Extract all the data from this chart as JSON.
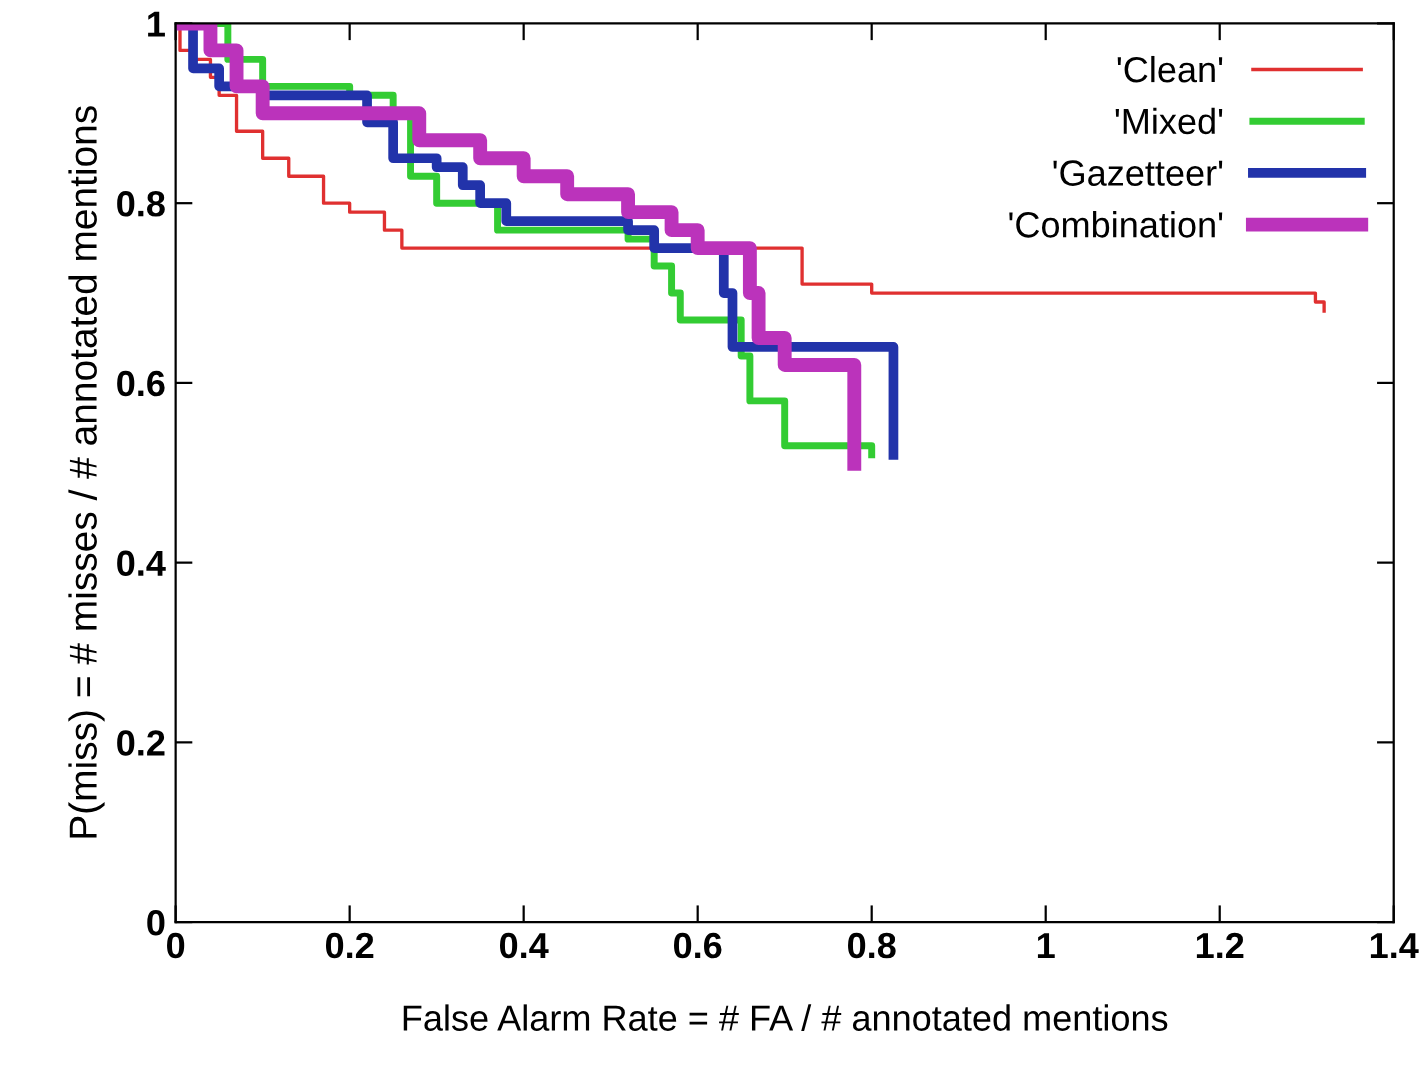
{
  "chart_data": {
    "type": "step",
    "xlabel": "False Alarm Rate = # FA / # annotated mentions",
    "ylabel": "P(miss) = # misses / # annotated mentions",
    "xlim": [
      0,
      1.4
    ],
    "ylim": [
      0,
      1
    ],
    "xticks": [
      0,
      0.2,
      0.4,
      0.6,
      0.8,
      1,
      1.2,
      1.4
    ],
    "yticks": [
      0,
      0.2,
      0.4,
      0.6,
      0.8,
      1
    ],
    "grid": false,
    "legend": "top right",
    "series": [
      {
        "name": "'Clean'",
        "color": "#e03030",
        "x": [
          0,
          0.005,
          0.02,
          0.04,
          0.05,
          0.07,
          0.1,
          0.13,
          0.17,
          0.2,
          0.24,
          0.26,
          0.72,
          0.8,
          1.3,
          1.31,
          1.32
        ],
        "values": [
          1,
          0.97,
          0.96,
          0.94,
          0.92,
          0.88,
          0.85,
          0.83,
          0.8,
          0.79,
          0.77,
          0.75,
          0.71,
          0.7,
          0.7,
          0.69,
          0.68
        ]
      },
      {
        "name": "'Mixed'",
        "color": "#33cc33",
        "x": [
          0,
          0.06,
          0.1,
          0.2,
          0.25,
          0.27,
          0.3,
          0.37,
          0.52,
          0.55,
          0.57,
          0.58,
          0.65,
          0.66,
          0.7,
          0.8
        ],
        "values": [
          1,
          0.96,
          0.93,
          0.92,
          0.9,
          0.83,
          0.8,
          0.77,
          0.76,
          0.73,
          0.7,
          0.67,
          0.63,
          0.58,
          0.53,
          0.52
        ]
      },
      {
        "name": "'Gazetteer'",
        "color": "#2233aa",
        "x": [
          0,
          0.02,
          0.05,
          0.1,
          0.22,
          0.25,
          0.3,
          0.33,
          0.35,
          0.38,
          0.52,
          0.55,
          0.62,
          0.63,
          0.64,
          0.82,
          0.825
        ],
        "values": [
          1,
          0.95,
          0.93,
          0.92,
          0.89,
          0.85,
          0.84,
          0.82,
          0.8,
          0.78,
          0.77,
          0.75,
          0.75,
          0.7,
          0.64,
          0.64,
          0.52
        ]
      },
      {
        "name": "'Combination'",
        "color": "#bb33bb",
        "x": [
          0,
          0.04,
          0.07,
          0.1,
          0.25,
          0.28,
          0.35,
          0.4,
          0.45,
          0.52,
          0.57,
          0.6,
          0.64,
          0.66,
          0.67,
          0.7,
          0.77,
          0.78
        ],
        "values": [
          1,
          0.97,
          0.93,
          0.9,
          0.9,
          0.87,
          0.85,
          0.83,
          0.81,
          0.79,
          0.77,
          0.75,
          0.75,
          0.7,
          0.65,
          0.62,
          0.62,
          0.51
        ]
      }
    ]
  }
}
